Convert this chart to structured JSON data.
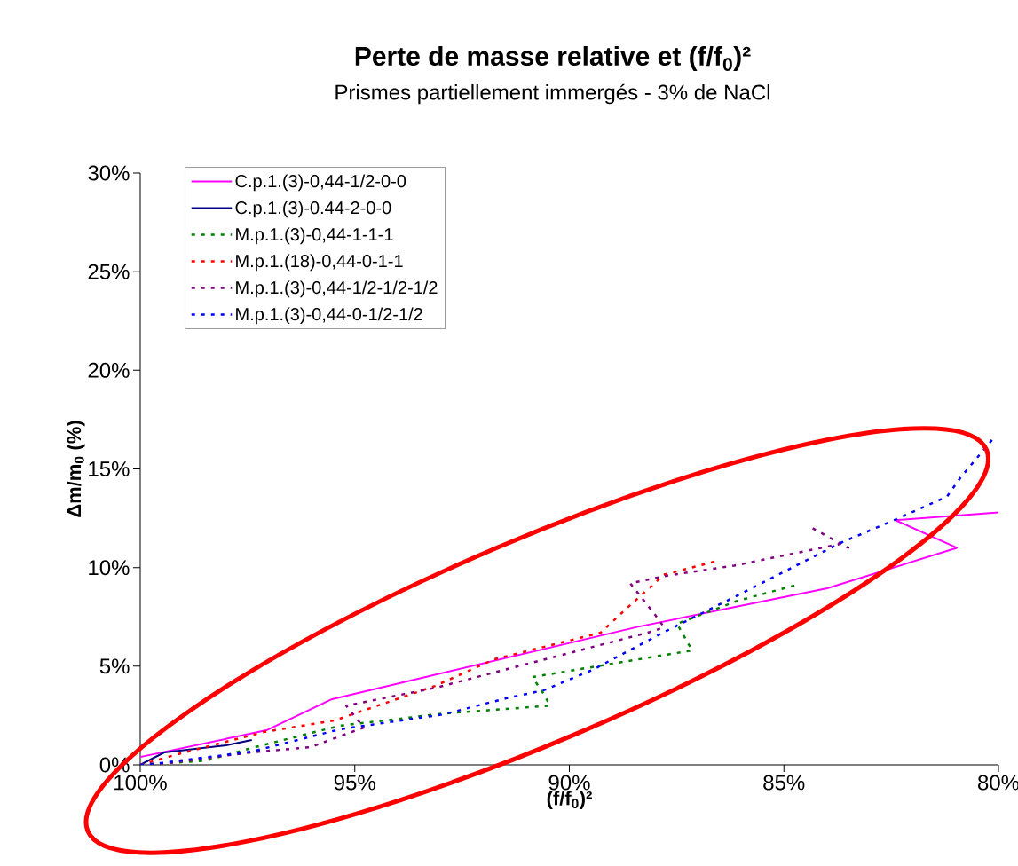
{
  "chart_data": {
    "type": "line",
    "title": "Perte de masse relative et (f/f$_{0}$)²",
    "subtitle": "Prismes partiellement immergés - 3% de NaCl",
    "xlabel": "(f/f$_{0}$)²",
    "ylabel": "Δm/m$_{0}$ (%)",
    "xlim": [
      100,
      80
    ],
    "ylim": [
      0,
      30
    ],
    "xticks": [
      {
        "value": 100,
        "label": "100%"
      },
      {
        "value": 95,
        "label": "95%"
      },
      {
        "value": 90,
        "label": "90%"
      },
      {
        "value": 85,
        "label": "85%"
      },
      {
        "value": 80,
        "label": "80%"
      }
    ],
    "yticks": [
      {
        "value": 0,
        "label": "0%"
      },
      {
        "value": 5,
        "label": "5%"
      },
      {
        "value": 10,
        "label": "10%"
      },
      {
        "value": 15,
        "label": "15%"
      },
      {
        "value": 20,
        "label": "20%"
      },
      {
        "value": 25,
        "label": "25%"
      },
      {
        "value": 30,
        "label": "30%"
      }
    ],
    "grid": false,
    "legend": "top left",
    "marker": "none",
    "series": [
      {
        "name": "C.p.1.(3)-0,44-1/2-0-0",
        "color": "#ff00ff",
        "line_style": "solid",
        "x": [
          100,
          97.06,
          95.53,
          88.4,
          83.99,
          80.97,
          82.4,
          80.0
        ],
        "values": [
          0.4,
          1.75,
          3.33,
          7.0,
          8.95,
          11.0,
          12.4,
          12.8
        ]
      },
      {
        "name": "C.p.1.(3)-0.44-2-0-0",
        "color": "#000080",
        "line_style": "solid",
        "x": [
          100,
          99.44,
          98.0,
          97.4
        ],
        "values": [
          0,
          0.63,
          0.99,
          1.26
        ]
      },
      {
        "name": "M.p.1.(3)-0,44-1-1-1",
        "color": "#008000",
        "line_style": "dashed",
        "x": [
          100,
          98.45,
          97.41,
          95.35,
          92.93,
          90.45,
          90.6,
          90.86,
          87.14,
          87.49,
          86.1,
          84.74
        ],
        "values": [
          0,
          0.22,
          0.85,
          1.98,
          2.6,
          3.0,
          3.6,
          4.45,
          5.8,
          7.15,
          8.3,
          9.1
        ]
      },
      {
        "name": "M.p.1.(18)-0,44-0-1-1",
        "color": "#ff0000",
        "line_style": "dashed",
        "x": [
          100,
          99.13,
          97.13,
          95.47,
          93.13,
          91.75,
          89.27,
          88.65,
          87.96,
          87.82,
          86.62
        ],
        "values": [
          0,
          0.54,
          1.66,
          2.25,
          4.0,
          5.35,
          6.7,
          7.96,
          9.31,
          9.63,
          10.3
        ]
      },
      {
        "name": "M.p.1.(3)-0,44-1/2-1/2-1/2",
        "color": "#800080",
        "line_style": "dashed",
        "x": [
          100,
          99.34,
          97.41,
          96.03,
          94.79,
          95.2,
          93.13,
          88.0,
          87.8,
          88.0,
          88.58,
          87.7,
          86.16,
          83.68,
          83.5,
          84.38
        ],
        "values": [
          0,
          0.1,
          0.63,
          0.9,
          1.89,
          3.0,
          3.9,
          6.8,
          7.0,
          7.6,
          9.2,
          9.6,
          10.1,
          11.2,
          11.0,
          12.05
        ]
      },
      {
        "name": "M.p.1.(3)-0,44-0-1/2-1/2",
        "color": "#0000ff",
        "line_style": "dashed",
        "x": [
          100,
          99.5,
          97.4,
          95.35,
          92.93,
          91.48,
          90.6,
          89.47,
          87.82,
          86.16,
          83.68,
          82.38,
          81.2,
          80.87,
          80.1
        ],
        "values": [
          0,
          0.1,
          0.67,
          1.8,
          2.56,
          3.37,
          3.78,
          4.8,
          6.7,
          8.5,
          11.25,
          12.45,
          13.6,
          14.6,
          16.6
        ]
      }
    ]
  }
}
